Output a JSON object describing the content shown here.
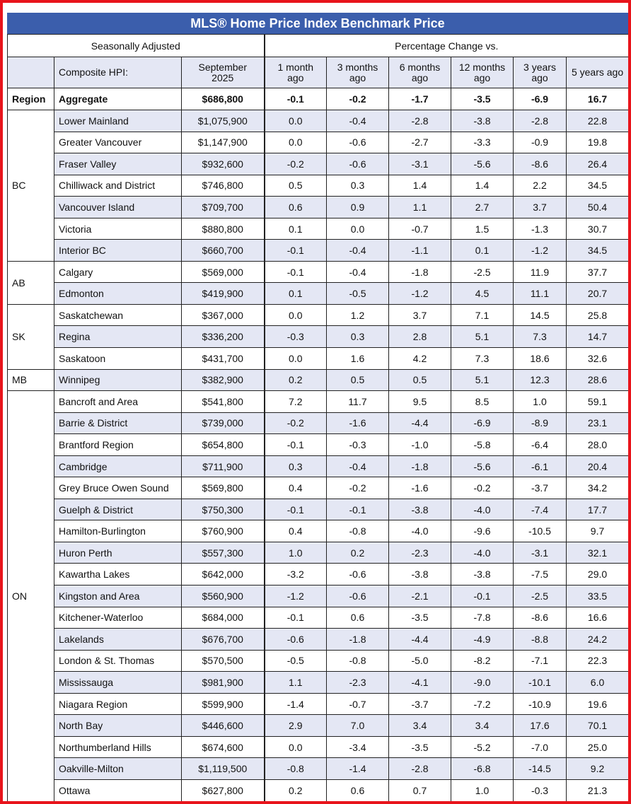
{
  "title": "MLS® Home Price Index Benchmark Price",
  "header": {
    "left": "Seasonally Adjusted",
    "right": "Percentage Change vs.",
    "columns": [
      "Composite HPI:",
      "September 2025",
      "1 month ago",
      "3 months ago",
      "6 months ago",
      "12 months ago",
      "3 years ago",
      "5 years ago"
    ]
  },
  "aggregate": {
    "region": "Region",
    "cells": [
      "Aggregate",
      "$686,800",
      "-0.1",
      "-0.2",
      "-1.7",
      "-3.5",
      "-6.9",
      "16.7"
    ]
  },
  "groups": [
    {
      "region": "BC",
      "rows": [
        [
          "Lower Mainland",
          "$1,075,900",
          "0.0",
          "-0.4",
          "-2.8",
          "-3.8",
          "-2.8",
          "22.8"
        ],
        [
          "Greater Vancouver",
          "$1,147,900",
          "0.0",
          "-0.6",
          "-2.7",
          "-3.3",
          "-0.9",
          "19.8"
        ],
        [
          "Fraser Valley",
          "$932,600",
          "-0.2",
          "-0.6",
          "-3.1",
          "-5.6",
          "-8.6",
          "26.4"
        ],
        [
          "Chilliwack and District",
          "$746,800",
          "0.5",
          "0.3",
          "1.4",
          "1.4",
          "2.2",
          "34.5"
        ],
        [
          "Vancouver Island",
          "$709,700",
          "0.6",
          "0.9",
          "1.1",
          "2.7",
          "3.7",
          "50.4"
        ],
        [
          "Victoria",
          "$880,800",
          "0.1",
          "0.0",
          "-0.7",
          "1.5",
          "-1.3",
          "30.7"
        ],
        [
          "Interior BC",
          "$660,700",
          "-0.1",
          "-0.4",
          "-1.1",
          "0.1",
          "-1.2",
          "34.5"
        ]
      ]
    },
    {
      "region": "AB",
      "rows": [
        [
          "Calgary",
          "$569,000",
          "-0.1",
          "-0.4",
          "-1.8",
          "-2.5",
          "11.9",
          "37.7"
        ],
        [
          "Edmonton",
          "$419,900",
          "0.1",
          "-0.5",
          "-1.2",
          "4.5",
          "11.1",
          "20.7"
        ]
      ]
    },
    {
      "region": "SK",
      "rows": [
        [
          "Saskatchewan",
          "$367,000",
          "0.0",
          "1.2",
          "3.7",
          "7.1",
          "14.5",
          "25.8"
        ],
        [
          "Regina",
          "$336,200",
          "-0.3",
          "0.3",
          "2.8",
          "5.1",
          "7.3",
          "14.7"
        ],
        [
          "Saskatoon",
          "$431,700",
          "0.0",
          "1.6",
          "4.2",
          "7.3",
          "18.6",
          "32.6"
        ]
      ]
    },
    {
      "region": "MB",
      "rows": [
        [
          "Winnipeg",
          "$382,900",
          "0.2",
          "0.5",
          "0.5",
          "5.1",
          "12.3",
          "28.6"
        ]
      ]
    },
    {
      "region": "ON",
      "rows": [
        [
          "Bancroft and Area",
          "$541,800",
          "7.2",
          "11.7",
          "9.5",
          "8.5",
          "1.0",
          "59.1"
        ],
        [
          "Barrie & District",
          "$739,000",
          "-0.2",
          "-1.6",
          "-4.4",
          "-6.9",
          "-8.9",
          "23.1"
        ],
        [
          "Brantford Region",
          "$654,800",
          "-0.1",
          "-0.3",
          "-1.0",
          "-5.8",
          "-6.4",
          "28.0"
        ],
        [
          "Cambridge",
          "$711,900",
          "0.3",
          "-0.4",
          "-1.8",
          "-5.6",
          "-6.1",
          "20.4"
        ],
        [
          "Grey Bruce Owen Sound",
          "$569,800",
          "0.4",
          "-0.2",
          "-1.6",
          "-0.2",
          "-3.7",
          "34.2"
        ],
        [
          "Guelph & District",
          "$750,300",
          "-0.1",
          "-0.1",
          "-3.8",
          "-4.0",
          "-7.4",
          "17.7"
        ],
        [
          "Hamilton-Burlington",
          "$760,900",
          "0.4",
          "-0.8",
          "-4.0",
          "-9.6",
          "-10.5",
          "9.7"
        ],
        [
          "Huron Perth",
          "$557,300",
          "1.0",
          "0.2",
          "-2.3",
          "-4.0",
          "-3.1",
          "32.1"
        ],
        [
          "Kawartha Lakes",
          "$642,000",
          "-3.2",
          "-0.6",
          "-3.8",
          "-3.8",
          "-7.5",
          "29.0"
        ],
        [
          "Kingston and Area",
          "$560,900",
          "-1.2",
          "-0.6",
          "-2.1",
          "-0.1",
          "-2.5",
          "33.5"
        ],
        [
          "Kitchener-Waterloo",
          "$684,000",
          "-0.1",
          "0.6",
          "-3.5",
          "-7.8",
          "-8.6",
          "16.6"
        ],
        [
          "Lakelands",
          "$676,700",
          "-0.6",
          "-1.8",
          "-4.4",
          "-4.9",
          "-8.8",
          "24.2"
        ],
        [
          "London & St. Thomas",
          "$570,500",
          "-0.5",
          "-0.8",
          "-5.0",
          "-8.2",
          "-7.1",
          "22.3"
        ],
        [
          "Mississauga",
          "$981,900",
          "1.1",
          "-2.3",
          "-4.1",
          "-9.0",
          "-10.1",
          "6.0"
        ],
        [
          "Niagara Region",
          "$599,900",
          "-1.4",
          "-0.7",
          "-3.7",
          "-7.2",
          "-10.9",
          "19.6"
        ],
        [
          "North Bay",
          "$446,600",
          "2.9",
          "7.0",
          "3.4",
          "3.4",
          "17.6",
          "70.1"
        ],
        [
          "Northumberland Hills",
          "$674,600",
          "0.0",
          "-3.4",
          "-3.5",
          "-5.2",
          "-7.0",
          "25.0"
        ],
        [
          "Oakville-Milton",
          "$1,119,500",
          "-0.8",
          "-1.4",
          "-2.8",
          "-6.8",
          "-14.5",
          "9.2"
        ],
        [
          "Ottawa",
          "$627,800",
          "0.2",
          "0.6",
          "0.7",
          "1.0",
          "-0.3",
          "21.3"
        ]
      ]
    }
  ]
}
